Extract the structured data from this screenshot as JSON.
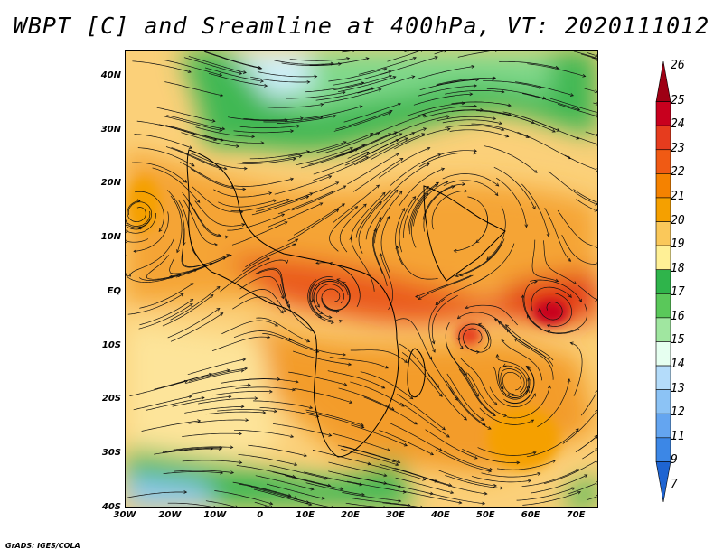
{
  "title": "WBPT [C] and Sreamline at 400hPa, VT: 2020111012",
  "credit": "GrADS: IGES/COLA",
  "map": {
    "lat_labels": [
      "40N",
      "30N",
      "20N",
      "10N",
      "EQ",
      "10S",
      "20S",
      "30S",
      "40S"
    ],
    "lon_labels": [
      "30W",
      "20W",
      "10W",
      "0",
      "10E",
      "20E",
      "30E",
      "40E",
      "50E",
      "60E",
      "70E"
    ],
    "lat_range": [
      -40,
      45
    ],
    "lon_range": [
      -30,
      75
    ]
  },
  "colorbar": {
    "labels": [
      "26",
      "25",
      "24",
      "23",
      "22",
      "21",
      "20",
      "19",
      "18",
      "17",
      "16",
      "15",
      "14",
      "13",
      "12",
      "11",
      "9",
      "7"
    ],
    "colors": [
      "#9e0014",
      "#c8001e",
      "#e63c1e",
      "#f05a14",
      "#f58200",
      "#f5a000",
      "#fac85a",
      "#fff096",
      "#2fb44b",
      "#5ac85a",
      "#a0e6a0",
      "#e6fff0",
      "#b4dcfa",
      "#8cc3f5",
      "#64a5f0",
      "#3c87e6",
      "#1e64d2"
    ]
  }
}
